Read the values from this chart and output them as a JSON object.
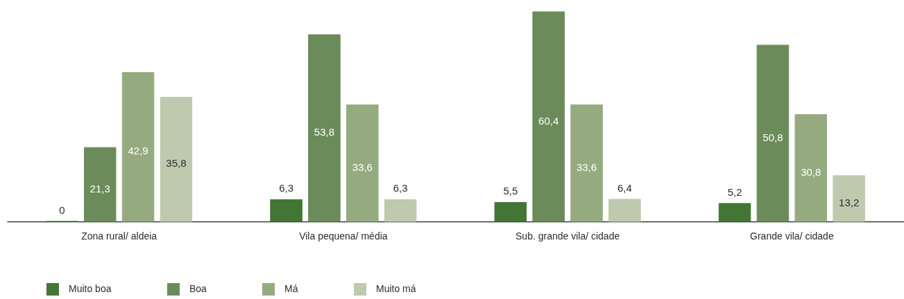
{
  "chart_data": {
    "type": "bar",
    "categories": [
      "Zona rural/ aldeia",
      "Vila pequena/ média",
      "Sub. grande vila/ cidade",
      "Grande vila/ cidade"
    ],
    "series": [
      {
        "name": "Muito boa",
        "color": "#437534",
        "values": [
          0,
          6.3,
          5.5,
          5.2
        ],
        "value_labels": [
          "0",
          "6,3",
          "5,5",
          "5,2"
        ]
      },
      {
        "name": "Boa",
        "color": "#6b8c5a",
        "values": [
          21.3,
          53.8,
          60.4,
          50.8
        ],
        "value_labels": [
          "21,3",
          "53,8",
          "60,4",
          "50,8"
        ]
      },
      {
        "name": "Má",
        "color": "#96aa80",
        "values": [
          42.9,
          33.6,
          33.6,
          30.8
        ],
        "value_labels": [
          "42,9",
          "33,6",
          "33,6",
          "30,8"
        ]
      },
      {
        "name": "Muito má",
        "color": "#bfc9ae",
        "values": [
          35.8,
          6.3,
          6.4,
          13.2
        ],
        "value_labels": [
          "35,8",
          "6,3",
          "6,4",
          "13,2"
        ]
      }
    ],
    "legend": "bottom left"
  }
}
